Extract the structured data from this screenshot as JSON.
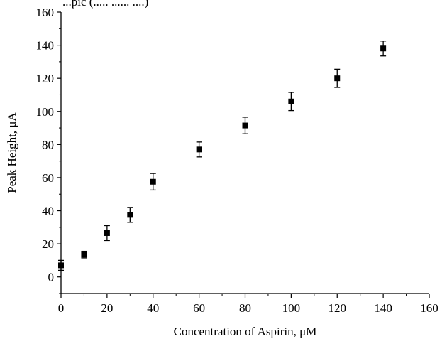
{
  "page": {
    "top_text": "...pic (..... ...... ....)"
  },
  "chart_data": {
    "type": "scatter",
    "title": "",
    "xlabel": "Concentration of Aspirin, μM",
    "ylabel": "Peak Height, μA",
    "xlim": [
      0,
      160
    ],
    "ylim": [
      -10,
      160
    ],
    "xticks": [
      0,
      20,
      40,
      60,
      80,
      100,
      120,
      140,
      160
    ],
    "yticks": [
      0,
      20,
      40,
      60,
      80,
      100,
      120,
      140,
      160
    ],
    "x_tick_labels": [
      "0",
      "20",
      "40",
      "60",
      "80",
      "100",
      "120",
      "140",
      "160"
    ],
    "y_tick_labels": [
      "0",
      "20",
      "40",
      "60",
      "80",
      "100",
      "120",
      "140",
      "160"
    ],
    "grid": false,
    "marker": "square",
    "marker_color": "#000000",
    "series": [
      {
        "x": [
          0,
          10,
          20,
          30,
          40,
          60,
          80,
          100,
          120,
          140
        ],
        "y": [
          7,
          13.5,
          26.5,
          37.5,
          57.5,
          77,
          91.5,
          106,
          120,
          138
        ],
        "error": [
          3,
          2,
          4.5,
          4.5,
          5,
          4.5,
          5,
          5.5,
          5.5,
          4.5
        ]
      }
    ]
  }
}
